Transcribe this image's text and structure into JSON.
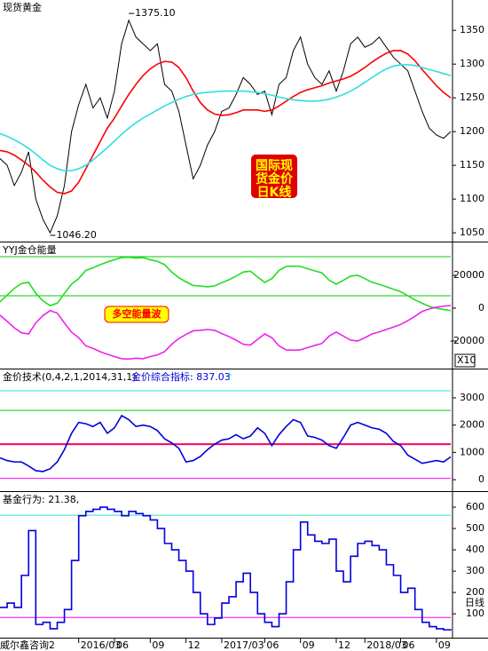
{
  "chart_data": [
    {
      "type": "line",
      "title": "现货黄金",
      "ylim": [
        1037,
        1395
      ],
      "yticks": [
        1050,
        1100,
        1150,
        1200,
        1250,
        1300,
        1350
      ],
      "series": [
        {
          "color": "#000000",
          "values": [
            1160,
            1150,
            1120,
            1140,
            1170,
            1100,
            1070,
            1050,
            1075,
            1120,
            1200,
            1240,
            1270,
            1235,
            1250,
            1220,
            1260,
            1330,
            1365,
            1340,
            1330,
            1320,
            1330,
            1270,
            1260,
            1230,
            1180,
            1130,
            1150,
            1180,
            1200,
            1230,
            1235,
            1255,
            1280,
            1270,
            1255,
            1260,
            1225,
            1270,
            1280,
            1320,
            1340,
            1300,
            1280,
            1270,
            1290,
            1260,
            1290,
            1330,
            1340,
            1325,
            1330,
            1340,
            1325,
            1310,
            1300,
            1290,
            1260,
            1230,
            1205,
            1195,
            1190,
            1200
          ]
        },
        {
          "color": "#ff0000",
          "values": [
            1172,
            1170,
            1165,
            1158,
            1150,
            1140,
            1128,
            1118,
            1110,
            1108,
            1112,
            1125,
            1145,
            1165,
            1185,
            1205,
            1220,
            1238,
            1255,
            1270,
            1283,
            1293,
            1300,
            1304,
            1303,
            1295,
            1280,
            1260,
            1243,
            1232,
            1226,
            1224,
            1225,
            1228,
            1232,
            1232,
            1232,
            1230,
            1232,
            1238,
            1245,
            1252,
            1258,
            1262,
            1265,
            1268,
            1272,
            1275,
            1278,
            1282,
            1288,
            1295,
            1303,
            1310,
            1316,
            1320,
            1320,
            1315,
            1305,
            1292,
            1280,
            1268,
            1258,
            1250
          ]
        },
        {
          "color": "#33dddd",
          "values": [
            1197,
            1193,
            1188,
            1182,
            1175,
            1167,
            1158,
            1150,
            1145,
            1142,
            1142,
            1145,
            1150,
            1158,
            1167,
            1176,
            1186,
            1196,
            1205,
            1213,
            1220,
            1226,
            1232,
            1238,
            1243,
            1248,
            1252,
            1255,
            1257,
            1258,
            1259,
            1260,
            1260,
            1260,
            1260,
            1259,
            1258,
            1256,
            1254,
            1251,
            1249,
            1247,
            1246,
            1245,
            1245,
            1246,
            1248,
            1251,
            1255,
            1260,
            1266,
            1273,
            1280,
            1287,
            1293,
            1297,
            1299,
            1299,
            1298,
            1295,
            1292,
            1289,
            1286,
            1283
          ]
        }
      ],
      "annotations": [
        {
          "x": 18,
          "value": 1375.1,
          "label": "1375.10"
        },
        {
          "x": 7,
          "value": 1046.2,
          "label": "1046.20"
        }
      ],
      "badge": {
        "lines": [
          "国际现",
          "货金价",
          "日K线"
        ],
        "fill": "#e00000",
        "color": "#ffff00"
      }
    },
    {
      "type": "line",
      "title": "YYJ金仓能量",
      "ylim": [
        -36800,
        40000
      ],
      "yticks": [
        -20000,
        0,
        20000
      ],
      "axis_note": "X10",
      "reference_lines": [
        {
          "value": 31350,
          "color": "#00cc00"
        },
        {
          "value": 7570,
          "color": "#00cc00"
        }
      ],
      "series": [
        {
          "color": "#22dd22",
          "values": [
            3800,
            8000,
            12000,
            15000,
            15700,
            9000,
            4500,
            1500,
            3000,
            9000,
            14600,
            18000,
            23000,
            24500,
            26500,
            28100,
            29500,
            30800,
            31000,
            30500,
            30800,
            29500,
            28500,
            26500,
            22000,
            18500,
            16000,
            13800,
            13500,
            13000,
            13500,
            15500,
            17300,
            19500,
            22000,
            22500,
            19000,
            15700,
            18000,
            23000,
            25400,
            25600,
            25400,
            24000,
            22700,
            21500,
            17000,
            14600,
            17000,
            19500,
            20000,
            18000,
            15700,
            14500,
            13000,
            11500,
            10000,
            7600,
            5000,
            3000,
            1000,
            0,
            -800,
            -1500
          ]
        },
        {
          "color": "#ee22ee",
          "values": [
            -4300,
            -8000,
            -12000,
            -15000,
            -15700,
            -9000,
            -4500,
            -1500,
            -3000,
            -9000,
            -14600,
            -18000,
            -23000,
            -24500,
            -26500,
            -28100,
            -29500,
            -30800,
            -31000,
            -30500,
            -30800,
            -29500,
            -28500,
            -26500,
            -22000,
            -18500,
            -16000,
            -13800,
            -13500,
            -13000,
            -13500,
            -15500,
            -17300,
            -19500,
            -22000,
            -22500,
            -19000,
            -15700,
            -18000,
            -23000,
            -25400,
            -25600,
            -25400,
            -24000,
            -22700,
            -21500,
            -17000,
            -14600,
            -17000,
            -19500,
            -20000,
            -18000,
            -15700,
            -14500,
            -13000,
            -11500,
            -10000,
            -7600,
            -5000,
            -2000,
            -500,
            600,
            1200,
            1600
          ]
        }
      ],
      "label_box": {
        "text": "多空能量波",
        "fill": "#ffff00",
        "color": "#ff0000"
      }
    },
    {
      "type": "line",
      "title": "金价技术(0,4,2,1,2014,31,1)",
      "indicator": "金价综合指标: 837.03",
      "arrow": "↑",
      "ylim": [
        -420,
        4040
      ],
      "yticks": [
        0,
        1000,
        2000,
        3000
      ],
      "reference_lines": [
        {
          "value": 3260,
          "color": "#33dddd"
        },
        {
          "value": 2540,
          "color": "#00cc00"
        },
        {
          "value": 1300,
          "color": "#ff0066"
        },
        {
          "value": 50,
          "color": "#ff00ff"
        }
      ],
      "series": [
        {
          "color": "#0000dd",
          "values": [
            800,
            700,
            650,
            650,
            500,
            330,
            300,
            400,
            650,
            1100,
            1700,
            2100,
            2050,
            1950,
            2100,
            1700,
            1900,
            2350,
            2200,
            1950,
            2000,
            1950,
            1800,
            1500,
            1350,
            1150,
            650,
            700,
            850,
            1100,
            1300,
            1450,
            1500,
            1650,
            1500,
            1600,
            1900,
            1700,
            1250,
            1650,
            1950,
            2200,
            2100,
            1600,
            1550,
            1450,
            1250,
            1150,
            1550,
            2000,
            2100,
            2000,
            1900,
            1850,
            1700,
            1400,
            1250,
            900,
            750,
            600,
            650,
            700,
            650,
            837.03
          ]
        }
      ]
    },
    {
      "type": "line",
      "title": "基金行为: 21.38,",
      "step": true,
      "ylim": [
        -12,
        671
      ],
      "yticks": [
        100,
        200,
        300,
        400,
        500,
        600
      ],
      "period_label": "日线",
      "source": "威尔鑫咨询2",
      "reference_lines": [
        {
          "value": 562,
          "color": "#33dddd"
        },
        {
          "value": 83,
          "color": "#ff00ff"
        }
      ],
      "xlim": [
        0,
        63
      ],
      "xticks": [
        {
          "value": 11,
          "label": "2016/03"
        },
        {
          "value": 16,
          "label": "06"
        },
        {
          "value": 21,
          "label": "09"
        },
        {
          "value": 26,
          "label": "12"
        },
        {
          "value": 31,
          "label": "2017/03"
        },
        {
          "value": 37,
          "label": "06"
        },
        {
          "value": 42,
          "label": "09"
        },
        {
          "value": 47,
          "label": "12"
        },
        {
          "value": 51,
          "label": "2018/03"
        },
        {
          "value": 56,
          "label": "06"
        },
        {
          "value": 61,
          "label": "09"
        }
      ],
      "series": [
        {
          "color": "#0000dd",
          "values": [
            130,
            150,
            130,
            280,
            490,
            50,
            60,
            30,
            60,
            120,
            350,
            560,
            580,
            590,
            600,
            590,
            580,
            560,
            580,
            570,
            560,
            540,
            500,
            430,
            400,
            350,
            300,
            200,
            100,
            50,
            80,
            150,
            180,
            250,
            290,
            200,
            100,
            60,
            40,
            100,
            250,
            400,
            530,
            470,
            440,
            430,
            450,
            300,
            250,
            370,
            430,
            440,
            420,
            400,
            330,
            280,
            200,
            220,
            120,
            60,
            40,
            30,
            25,
            21.38
          ]
        }
      ]
    }
  ]
}
